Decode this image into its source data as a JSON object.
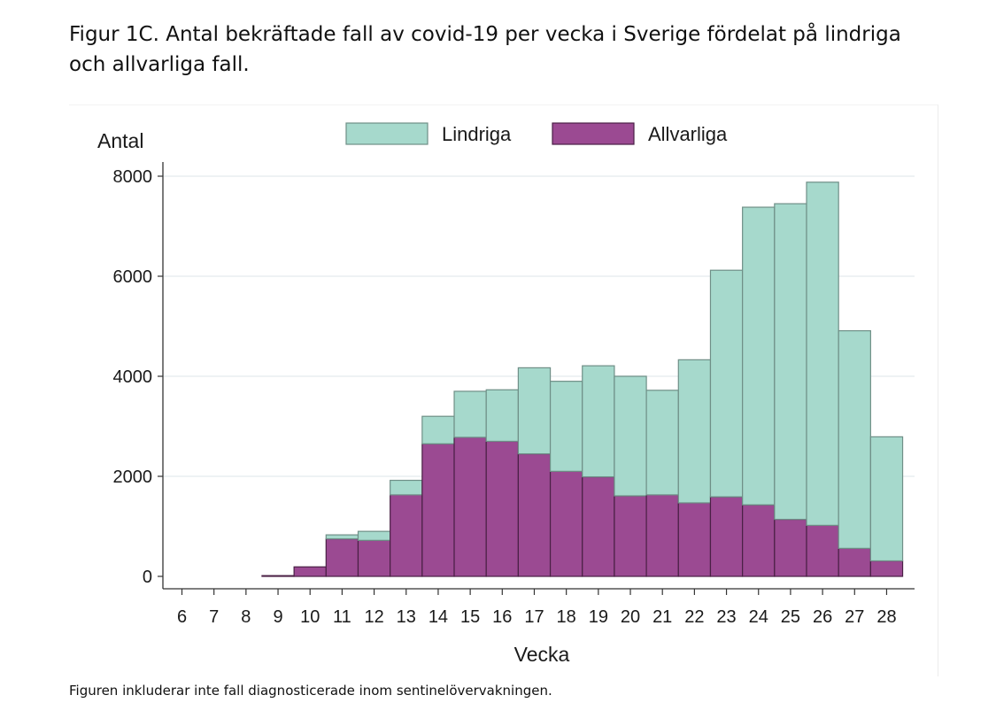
{
  "figure": {
    "title": "Figur 1C. Antal bekräftade fall av covid-19 per vecka i Sverige fördelat på lindriga och allvarliga fall.",
    "note": "Figuren inkluderar inte fall diagnosticerade inom sentinelövervakningen."
  },
  "chart_data": {
    "type": "bar",
    "stacked": true,
    "xlabel": "Vecka",
    "ylabel": "Antal",
    "ylim": [
      0,
      8000
    ],
    "yticks": [
      0,
      2000,
      4000,
      6000,
      8000
    ],
    "categories": [
      "6",
      "7",
      "8",
      "9",
      "10",
      "11",
      "12",
      "13",
      "14",
      "15",
      "16",
      "17",
      "18",
      "19",
      "20",
      "21",
      "22",
      "23",
      "24",
      "25",
      "26",
      "27",
      "28"
    ],
    "legend_position": "top",
    "grid": true,
    "series": [
      {
        "name": "Allvarliga",
        "color": "#9b4a92",
        "values": [
          0,
          0,
          0,
          15,
          190,
          750,
          720,
          1630,
          2650,
          2780,
          2700,
          2450,
          2100,
          1990,
          1610,
          1630,
          1470,
          1590,
          1430,
          1140,
          1020,
          560,
          310
        ]
      },
      {
        "name": "Lindriga",
        "color": "#a6d9cc",
        "values": [
          0,
          0,
          0,
          0,
          0,
          80,
          180,
          290,
          550,
          920,
          1030,
          1720,
          1800,
          2220,
          2390,
          2090,
          2860,
          4530,
          5950,
          6310,
          6860,
          4350,
          2480
        ]
      }
    ]
  }
}
